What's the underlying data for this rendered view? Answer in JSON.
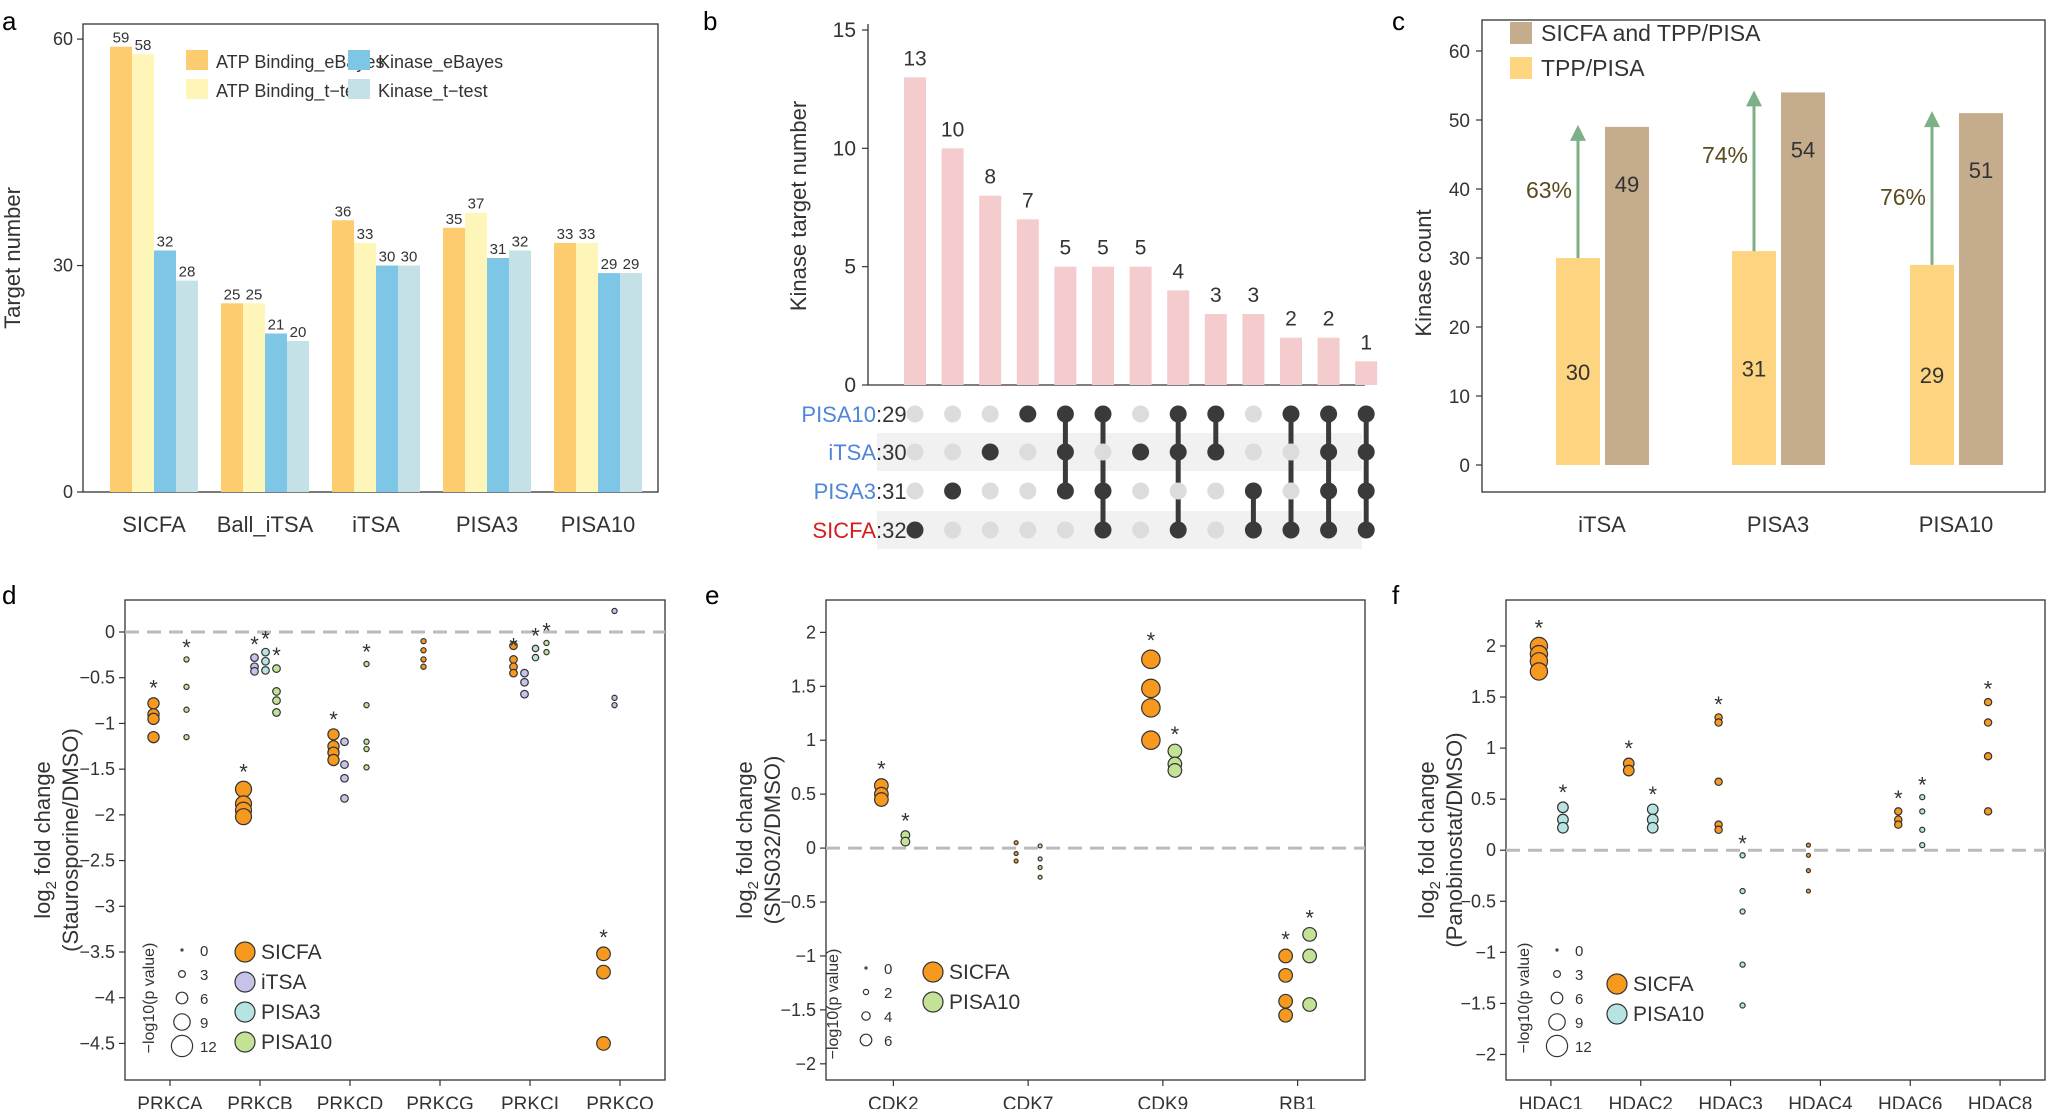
{
  "colors": {
    "atp_ebayes": "#FDCC6E",
    "atp_ttest": "#FEF5B8",
    "kinase_ebayes": "#7EC6E6",
    "kinase_ttest": "#C3E1E6",
    "upset_bar": "#F5CCCE",
    "dot_on": "#3A3A3A",
    "dot_off": "#DCDCDC",
    "stripe": "#F1F1F1",
    "blue_label": "#4F86D9",
    "red_label": "#D81E1E",
    "tpp": "#FDD480",
    "sicfa_tpp": "#C5AC8C",
    "arrow": "#7EAF87",
    "pct_text": "#5A4A1E",
    "sicfa": "#F6991E",
    "itsa": "#C5C3E8",
    "pisa3": "#B7E3E3",
    "pisa10": "#C3E296",
    "dash": "#BBBBBB"
  },
  "chart_data": [
    {
      "panel": "a",
      "type": "bar",
      "ylabel": "Target number",
      "ylim": [
        0,
        62
      ],
      "yticks": [
        0,
        30,
        60
      ],
      "categories": [
        "SICFA",
        "Ball_iTSA",
        "iTSA",
        "PISA3",
        "PISA10"
      ],
      "series": [
        {
          "name": "ATP Binding_eBayes",
          "values": [
            59,
            25,
            36,
            35,
            33
          ]
        },
        {
          "name": "ATP Binding_t−test",
          "values": [
            58,
            25,
            33,
            37,
            33
          ]
        },
        {
          "name": "Kinase_eBayes",
          "values": [
            32,
            21,
            30,
            31,
            29
          ]
        },
        {
          "name": "Kinase_t−test",
          "values": [
            28,
            20,
            30,
            32,
            29
          ]
        }
      ]
    },
    {
      "panel": "b",
      "type": "upset",
      "ylabel": "Kinase target number",
      "ylim": [
        0,
        15
      ],
      "yticks": [
        0,
        5,
        10,
        15
      ],
      "values": [
        13,
        10,
        8,
        7,
        5,
        5,
        5,
        4,
        3,
        3,
        2,
        2,
        1
      ],
      "sets": [
        {
          "name": "PISA10",
          "size": 29,
          "color": "blue"
        },
        {
          "name": "iTSA",
          "size": 30,
          "color": "blue"
        },
        {
          "name": "PISA3",
          "size": 31,
          "color": "blue"
        },
        {
          "name": "SICFA",
          "size": 32,
          "color": "red"
        }
      ],
      "matrix": [
        [
          3
        ],
        [
          2
        ],
        [
          1
        ],
        [
          0
        ],
        [
          0,
          1,
          2
        ],
        [
          0,
          2,
          3
        ],
        [
          1
        ],
        [
          0,
          1,
          3
        ],
        [
          0,
          1
        ],
        [
          2,
          3
        ],
        [
          0,
          3
        ],
        [
          0,
          1,
          2,
          3
        ],
        [
          0,
          1,
          2,
          3
        ]
      ]
    },
    {
      "panel": "c",
      "type": "bar",
      "ylabel": "Kinase count",
      "ylim": [
        0,
        62
      ],
      "yticks": [
        0,
        10,
        20,
        30,
        40,
        50,
        60
      ],
      "categories": [
        "iTSA",
        "PISA3",
        "PISA10"
      ],
      "series": [
        {
          "name": "TPP/PISA",
          "values": [
            30,
            31,
            29
          ]
        },
        {
          "name": "SICFA and TPP/PISA",
          "values": [
            49,
            54,
            51
          ]
        }
      ],
      "annotations": [
        "63%",
        "74%",
        "76%"
      ]
    },
    {
      "panel": "d",
      "type": "scatter",
      "ylabel": "(Staurosporine/DMSO)",
      "ylabel_main": "fold change",
      "ylabel_pre": "log",
      "ylabel_sub": "2",
      "ylim": [
        -4.9,
        0.35
      ],
      "yticks": [
        0,
        -0.5,
        -1,
        -1.5,
        -2,
        -2.5,
        -3,
        -3.5,
        -4,
        -4.5
      ],
      "categories": [
        "PRKCA",
        "PRKCB",
        "PRKCD",
        "PRKCG",
        "PRKCI",
        "PRKCQ"
      ],
      "series": [
        {
          "name": "SICFA",
          "color_key": "sicfa",
          "points": [
            {
              "x": 0,
              "y": -0.78,
              "s": 6,
              "star": true
            },
            {
              "x": 0,
              "y": -0.9,
              "s": 6
            },
            {
              "x": 0,
              "y": -0.95,
              "s": 6
            },
            {
              "x": 0,
              "y": -1.15,
              "s": 6
            },
            {
              "x": 1,
              "y": -1.72,
              "s": 10,
              "star": true
            },
            {
              "x": 1,
              "y": -1.88,
              "s": 10
            },
            {
              "x": 1,
              "y": -1.95,
              "s": 10
            },
            {
              "x": 1,
              "y": -2.02,
              "s": 10
            },
            {
              "x": 2,
              "y": -1.12,
              "s": 6,
              "star": true
            },
            {
              "x": 2,
              "y": -1.25,
              "s": 6
            },
            {
              "x": 2,
              "y": -1.32,
              "s": 6
            },
            {
              "x": 2,
              "y": -1.4,
              "s": 6
            },
            {
              "x": 3,
              "y": -0.1,
              "s": 1
            },
            {
              "x": 3,
              "y": -0.2,
              "s": 1
            },
            {
              "x": 3,
              "y": -0.3,
              "s": 1
            },
            {
              "x": 3,
              "y": -0.38,
              "s": 1
            },
            {
              "x": 4,
              "y": -0.15,
              "s": 3
            },
            {
              "x": 4,
              "y": -0.3,
              "s": 3,
              "star": true
            },
            {
              "x": 4,
              "y": -0.38,
              "s": 3
            },
            {
              "x": 4,
              "y": -0.45,
              "s": 3
            },
            {
              "x": 5,
              "y": -3.52,
              "s": 8,
              "star": true
            },
            {
              "x": 5,
              "y": -3.72,
              "s": 8
            },
            {
              "x": 5,
              "y": -4.5,
              "s": 8
            }
          ]
        },
        {
          "name": "iTSA",
          "color_key": "itsa",
          "points": [
            {
              "x": 1,
              "y": -0.28,
              "s": 3,
              "star": true
            },
            {
              "x": 1,
              "y": -0.38,
              "s": 3
            },
            {
              "x": 1,
              "y": -0.43,
              "s": 3
            },
            {
              "x": 2,
              "y": -1.2,
              "s": 3
            },
            {
              "x": 2,
              "y": -1.45,
              "s": 3
            },
            {
              "x": 2,
              "y": -1.6,
              "s": 3
            },
            {
              "x": 2,
              "y": -1.82,
              "s": 3
            },
            {
              "x": 4,
              "y": -0.45,
              "s": 3
            },
            {
              "x": 4,
              "y": -0.55,
              "s": 3
            },
            {
              "x": 4,
              "y": -0.68,
              "s": 3
            },
            {
              "x": 5,
              "y": 0.23,
              "s": 1
            },
            {
              "x": 5,
              "y": -0.72,
              "s": 1
            },
            {
              "x": 5,
              "y": -0.8,
              "s": 1
            }
          ]
        },
        {
          "name": "PISA3",
          "color_key": "pisa3",
          "points": [
            {
              "x": 1,
              "y": -0.22,
              "s": 3,
              "star": true
            },
            {
              "x": 1,
              "y": -0.32,
              "s": 3
            },
            {
              "x": 1,
              "y": -0.42,
              "s": 3
            },
            {
              "x": 4,
              "y": -0.18,
              "s": 2,
              "star": true
            },
            {
              "x": 4,
              "y": -0.28,
              "s": 2
            }
          ]
        },
        {
          "name": "PISA10",
          "color_key": "pisa10",
          "points": [
            {
              "x": 0,
              "y": -0.3,
              "s": 1,
              "star": true
            },
            {
              "x": 0,
              "y": -0.6,
              "s": 1
            },
            {
              "x": 0,
              "y": -0.85,
              "s": 1
            },
            {
              "x": 0,
              "y": -1.15,
              "s": 1
            },
            {
              "x": 1,
              "y": -0.4,
              "s": 3,
              "star": true
            },
            {
              "x": 1,
              "y": -0.65,
              "s": 3
            },
            {
              "x": 1,
              "y": -0.75,
              "s": 3
            },
            {
              "x": 1,
              "y": -0.88,
              "s": 3
            },
            {
              "x": 2,
              "y": -0.35,
              "s": 1,
              "star": true
            },
            {
              "x": 2,
              "y": -0.8,
              "s": 1
            },
            {
              "x": 2,
              "y": -1.2,
              "s": 1
            },
            {
              "x": 2,
              "y": -1.28,
              "s": 1
            },
            {
              "x": 2,
              "y": -1.48,
              "s": 1
            },
            {
              "x": 4,
              "y": -0.12,
              "s": 1,
              "star": true
            },
            {
              "x": 4,
              "y": -0.22,
              "s": 1
            }
          ]
        }
      ],
      "size_legend": {
        "title": "−log10(p value)",
        "levels": [
          0,
          3,
          6,
          9,
          12
        ]
      }
    },
    {
      "panel": "e",
      "type": "scatter",
      "ylabel": "(SNS032/DMSO)",
      "ylabel_main": "fold change",
      "ylabel_pre": "log",
      "ylabel_sub": "2",
      "ylim": [
        -2.15,
        2.3
      ],
      "yticks": [
        2,
        1.5,
        1,
        0.5,
        0,
        -0.5,
        -1,
        -1.5,
        -2
      ],
      "categories": [
        "CDK2",
        "CDK7",
        "CDK9",
        "RB1"
      ],
      "series": [
        {
          "name": "SICFA",
          "color_key": "sicfa",
          "points": [
            {
              "x": 0,
              "y": 0.58,
              "s": 4,
              "star": true
            },
            {
              "x": 0,
              "y": 0.5,
              "s": 4
            },
            {
              "x": 0,
              "y": 0.45,
              "s": 4
            },
            {
              "x": 1,
              "y": 0.05,
              "s": 0
            },
            {
              "x": 1,
              "y": -0.05,
              "s": 0
            },
            {
              "x": 1,
              "y": -0.12,
              "s": 0
            },
            {
              "x": 2,
              "y": 1.75,
              "s": 6,
              "star": true
            },
            {
              "x": 2,
              "y": 1.48,
              "s": 6
            },
            {
              "x": 2,
              "y": 1.3,
              "s": 6
            },
            {
              "x": 2,
              "y": 1.0,
              "s": 6
            },
            {
              "x": 3,
              "y": -1.0,
              "s": 4,
              "star": true
            },
            {
              "x": 3,
              "y": -1.18,
              "s": 4
            },
            {
              "x": 3,
              "y": -1.42,
              "s": 4
            },
            {
              "x": 3,
              "y": -1.55,
              "s": 4
            }
          ]
        },
        {
          "name": "PISA10",
          "color_key": "pisa10",
          "points": [
            {
              "x": 0,
              "y": 0.12,
              "s": 2,
              "star": true
            },
            {
              "x": 0,
              "y": 0.06,
              "s": 2
            },
            {
              "x": 1,
              "y": 0.02,
              "s": 0
            },
            {
              "x": 1,
              "y": -0.1,
              "s": 0
            },
            {
              "x": 1,
              "y": -0.18,
              "s": 0
            },
            {
              "x": 1,
              "y": -0.27,
              "s": 0
            },
            {
              "x": 2,
              "y": 0.9,
              "s": 4,
              "star": true
            },
            {
              "x": 2,
              "y": 0.78,
              "s": 4
            },
            {
              "x": 2,
              "y": 0.72,
              "s": 4
            },
            {
              "x": 3,
              "y": -0.8,
              "s": 4,
              "star": true
            },
            {
              "x": 3,
              "y": -1.0,
              "s": 4
            },
            {
              "x": 3,
              "y": -1.45,
              "s": 4
            }
          ]
        }
      ],
      "size_legend": {
        "title": "−log10(p value)",
        "levels": [
          0,
          2,
          4,
          6
        ]
      }
    },
    {
      "panel": "f",
      "type": "scatter",
      "ylabel": "(Panobinostat/DMSO)",
      "ylabel_main": "fold change",
      "ylabel_pre": "log",
      "ylabel_sub": "2",
      "ylim": [
        -2.25,
        2.45
      ],
      "yticks": [
        2,
        1.5,
        1,
        0.5,
        0,
        -0.5,
        -1,
        -1.5,
        -2
      ],
      "categories": [
        "HDAC1",
        "HDAC2",
        "HDAC3",
        "HDAC4",
        "HDAC6",
        "HDAC8"
      ],
      "series": [
        {
          "name": "SICFA",
          "color_key": "sicfa",
          "points": [
            {
              "x": 0,
              "y": 2.0,
              "s": 12,
              "star": true
            },
            {
              "x": 0,
              "y": 1.92,
              "s": 12
            },
            {
              "x": 0,
              "y": 1.85,
              "s": 12
            },
            {
              "x": 0,
              "y": 1.75,
              "s": 12
            },
            {
              "x": 1,
              "y": 0.85,
              "s": 6,
              "star": true
            },
            {
              "x": 1,
              "y": 0.78,
              "s": 6
            },
            {
              "x": 2,
              "y": 1.3,
              "s": 3,
              "star": true
            },
            {
              "x": 2,
              "y": 1.25,
              "s": 3
            },
            {
              "x": 2,
              "y": 0.67,
              "s": 3
            },
            {
              "x": 2,
              "y": 0.25,
              "s": 3
            },
            {
              "x": 2,
              "y": 0.2,
              "s": 3
            },
            {
              "x": 3,
              "y": 0.05,
              "s": 0
            },
            {
              "x": 3,
              "y": -0.05,
              "s": 0
            },
            {
              "x": 3,
              "y": -0.2,
              "s": 0
            },
            {
              "x": 3,
              "y": -0.4,
              "s": 0
            },
            {
              "x": 4,
              "y": 0.38,
              "s": 3,
              "star": true
            },
            {
              "x": 4,
              "y": 0.3,
              "s": 3
            },
            {
              "x": 4,
              "y": 0.25,
              "s": 3
            },
            {
              "x": 5,
              "y": 1.45,
              "s": 3,
              "star": true
            },
            {
              "x": 5,
              "y": 1.25,
              "s": 3
            },
            {
              "x": 5,
              "y": 0.92,
              "s": 3
            },
            {
              "x": 5,
              "y": 0.38,
              "s": 3
            }
          ]
        },
        {
          "name": "PISA10",
          "color_key": "pisa3",
          "points": [
            {
              "x": 0,
              "y": 0.42,
              "s": 6,
              "star": true
            },
            {
              "x": 0,
              "y": 0.3,
              "s": 6
            },
            {
              "x": 0,
              "y": 0.22,
              "s": 6
            },
            {
              "x": 1,
              "y": 0.4,
              "s": 6,
              "star": true
            },
            {
              "x": 1,
              "y": 0.3,
              "s": 6
            },
            {
              "x": 1,
              "y": 0.22,
              "s": 6
            },
            {
              "x": 2,
              "y": -0.05,
              "s": 1,
              "star": true
            },
            {
              "x": 2,
              "y": -0.4,
              "s": 1
            },
            {
              "x": 2,
              "y": -0.6,
              "s": 1
            },
            {
              "x": 2,
              "y": -1.12,
              "s": 1
            },
            {
              "x": 2,
              "y": -1.52,
              "s": 1
            },
            {
              "x": 4,
              "y": 0.52,
              "s": 1,
              "star": true
            },
            {
              "x": 4,
              "y": 0.38,
              "s": 1
            },
            {
              "x": 4,
              "y": 0.2,
              "s": 1
            },
            {
              "x": 4,
              "y": 0.05,
              "s": 1
            }
          ]
        }
      ],
      "size_legend": {
        "title": "−log10(p value)",
        "levels": [
          0,
          3,
          6,
          9,
          12
        ]
      }
    }
  ]
}
